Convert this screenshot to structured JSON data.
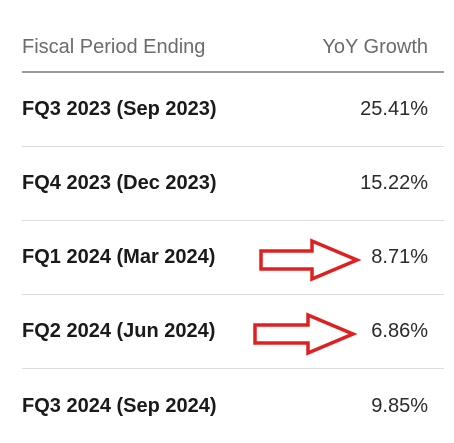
{
  "table": {
    "columns": [
      "Fiscal Period Ending",
      "YoY Growth"
    ],
    "rows": [
      {
        "period": "FQ3 2023 (Sep 2023)",
        "growth": "25.41%"
      },
      {
        "period": "FQ4 2023 (Dec 2023)",
        "growth": "15.22%"
      },
      {
        "period": "FQ1 2024 (Mar 2024)",
        "growth": "8.71%"
      },
      {
        "period": "FQ2 2024 (Jun 2024)",
        "growth": "6.86%"
      },
      {
        "period": "FQ3 2024 (Sep 2024)",
        "growth": "9.85%"
      }
    ]
  },
  "annotations": {
    "arrow_color": "#e02020",
    "arrows": [
      {
        "points_to_row": 2,
        "icon": "right-arrow-outline-icon"
      },
      {
        "points_to_row": 3,
        "icon": "right-arrow-outline-icon"
      }
    ]
  }
}
